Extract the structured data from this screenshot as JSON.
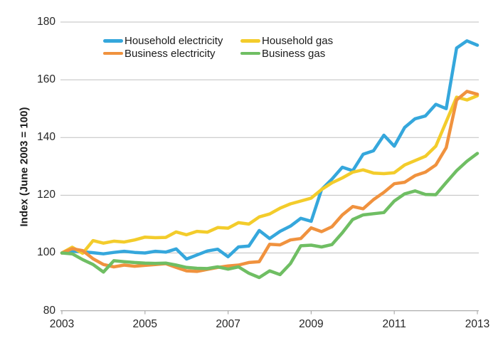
{
  "chart_data": {
    "type": "line",
    "y_axis": {
      "label": "Index (June 2003 = 100)",
      "min": 80,
      "max": 180,
      "ticks": [
        180,
        160,
        140,
        120,
        100,
        80
      ],
      "gridlines": true
    },
    "x_axis": {
      "ticks": [
        "2003",
        "2005",
        "2007",
        "2009",
        "2011",
        "2013"
      ],
      "tick_years": [
        2003,
        2005,
        2007,
        2009,
        2011,
        2013
      ],
      "start": "June 2003",
      "frequency": "quarterly",
      "points_per_year": 4
    },
    "legend_position": "top",
    "series": [
      {
        "name": "Household electricity",
        "color": "#35A7DC",
        "values": [
          100,
          100.7,
          100.4,
          100.1,
          99.7,
          100.2,
          100.6,
          100.2,
          100,
          100.6,
          100.3,
          101.4,
          97.9,
          99.3,
          100.7,
          101.3,
          98.7,
          102.1,
          102.4,
          107.8,
          105,
          107.5,
          109.3,
          112,
          111,
          122,
          125.6,
          129.7,
          128.5,
          134.2,
          135.4,
          140.8,
          137,
          143.5,
          146.5,
          147.5,
          151.5,
          150,
          171,
          173.5,
          172
        ]
      },
      {
        "name": "Household gas",
        "color": "#F3CC2B",
        "values": [
          100,
          102,
          99.9,
          104.3,
          103.4,
          104.1,
          103.8,
          104.5,
          105.5,
          105.3,
          105.4,
          107.3,
          106.3,
          107.5,
          107.2,
          108.8,
          108.6,
          110.5,
          110,
          112.5,
          113.5,
          115.5,
          117,
          118,
          119,
          122,
          124.3,
          126,
          128,
          128.8,
          127.7,
          127.5,
          127.8,
          130.5,
          132,
          133.5,
          137,
          145.5,
          154,
          153,
          154.5
        ]
      },
      {
        "name": "Business electricity",
        "color": "#F0923E",
        "values": [
          100,
          101.5,
          100.8,
          98,
          96,
          95.2,
          95.8,
          95.4,
          95.7,
          96,
          96.3,
          95,
          93.8,
          93.6,
          94.3,
          95,
          95.5,
          95.8,
          96.7,
          97,
          103,
          102.8,
          104.5,
          105,
          108.7,
          107.4,
          109.1,
          113.2,
          116.1,
          115.3,
          118.5,
          121,
          124,
          124.5,
          126.8,
          128,
          130.5,
          136.5,
          153,
          156,
          155
        ]
      },
      {
        "name": "Business gas",
        "color": "#6FBE63",
        "values": [
          100,
          99.7,
          97.7,
          96,
          93.4,
          97.3,
          97,
          96.7,
          96.5,
          96.4,
          96.5,
          95.8,
          95,
          94.7,
          94.6,
          95.2,
          94.4,
          95.2,
          93,
          91.5,
          93.8,
          92.5,
          96.3,
          102.5,
          102.7,
          102.1,
          102.9,
          107,
          111.6,
          113.2,
          113.6,
          114,
          118,
          120.5,
          121.5,
          120.3,
          120.2,
          124.4,
          128.5,
          131.8,
          134.5
        ]
      }
    ],
    "colors": {
      "gridline": "#BFBFBF",
      "axis": "#ADADAD",
      "text": "#262626"
    }
  }
}
